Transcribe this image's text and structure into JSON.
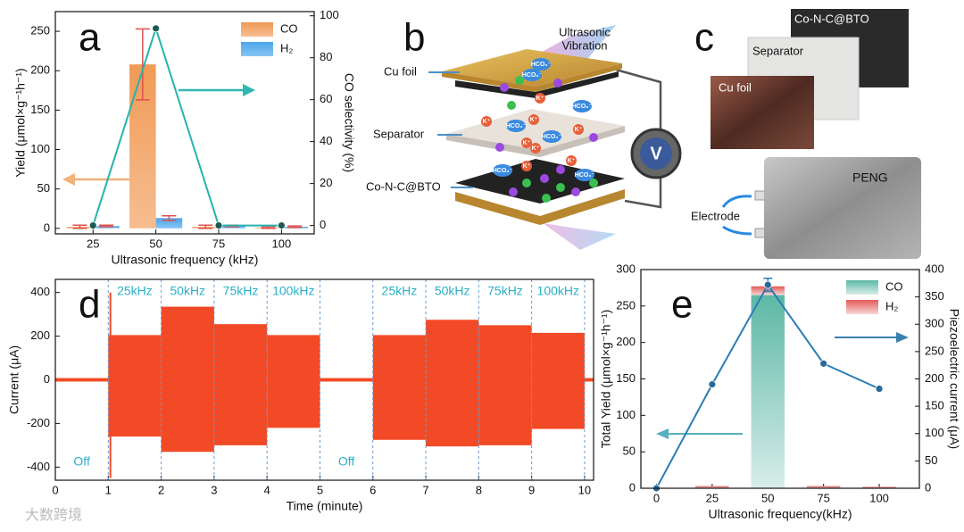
{
  "chart_data": [
    {
      "type": "bar",
      "panel": "a",
      "x_label": "Ultrasonic frequency (kHz)",
      "y_label": "Yield (μmol×g⁻¹h⁻¹)",
      "y2_label": "CO selectivity (%)",
      "x": [
        25,
        50,
        75,
        100
      ],
      "xlim": [
        10,
        113
      ],
      "xticks": [
        25,
        50,
        75,
        100
      ],
      "ylim": [
        -7,
        275
      ],
      "yticks": [
        0,
        50,
        100,
        150,
        200,
        250
      ],
      "y2lim": [
        -4,
        102
      ],
      "y2ticks": [
        0,
        20,
        40,
        60,
        80,
        100
      ],
      "legend": "upper right",
      "stacked": false,
      "series": [
        {
          "name": "CO",
          "color": "#f19a55",
          "values": [
            2,
            208,
            2,
            1
          ],
          "errors": [
            2,
            45,
            2,
            1
          ],
          "error_color": "#e05050"
        },
        {
          "name": "H₂",
          "color": "#4aa6ec",
          "values": [
            3,
            13,
            3,
            2
          ],
          "errors": [
            1,
            3,
            1,
            1
          ],
          "error_color": "#e05050"
        },
        {
          "type": "line",
          "axis": "y2",
          "color": "#26b3ad",
          "values": [
            0,
            94,
            0,
            0
          ]
        }
      ]
    },
    {
      "type": "envelope",
      "panel": "d",
      "x_label": "Time (minute)",
      "y_label": "Current (μA)",
      "xlim": [
        0,
        10.17
      ],
      "xticks": [
        0,
        1,
        2,
        3,
        4,
        5,
        6,
        7,
        8,
        9,
        10
      ],
      "ylim": [
        -460,
        460
      ],
      "yticks": [
        -400,
        -200,
        0,
        200,
        400
      ],
      "color": "#f24a26",
      "segments": [
        {
          "label": "Off",
          "start": 0,
          "end": 1,
          "max": 8,
          "min": -8
        },
        {
          "label": "25kHz",
          "start": 1,
          "end": 2,
          "max": 205,
          "min": -260
        },
        {
          "label": "50kHz",
          "start": 2,
          "end": 3,
          "max": 335,
          "min": -330
        },
        {
          "label": "75kHz",
          "start": 3,
          "end": 4,
          "max": 255,
          "min": -300
        },
        {
          "label": "100kHz",
          "start": 4,
          "end": 5,
          "max": 205,
          "min": -220
        },
        {
          "label": "Off",
          "start": 5,
          "end": 6,
          "max": 8,
          "min": -8
        },
        {
          "label": "25kHz",
          "start": 6,
          "end": 7,
          "max": 205,
          "min": -275
        },
        {
          "label": "50kHz",
          "start": 7,
          "end": 8,
          "max": 275,
          "min": -305
        },
        {
          "label": "75kHz",
          "start": 8,
          "end": 9,
          "max": 250,
          "min": -300
        },
        {
          "label": "100kHz",
          "start": 9,
          "end": 10,
          "max": 215,
          "min": -225
        },
        {
          "label": null,
          "start": 10,
          "end": 10.17,
          "max": 8,
          "min": -8
        }
      ],
      "spikes": [
        {
          "x": 1.04,
          "max": 400,
          "min": -450
        }
      ]
    },
    {
      "type": "bar",
      "panel": "e",
      "x_label": "Ultrasonic frequency(kHz)",
      "y_label": "Total Yield (μmol×g⁻¹h⁻¹)",
      "y2_label": "Piezoelectric current (μA)",
      "x": [
        0,
        25,
        50,
        75,
        100
      ],
      "xlim": [
        -7,
        118
      ],
      "xticks": [
        0,
        25,
        50,
        75,
        100
      ],
      "ylim": [
        0,
        300
      ],
      "yticks": [
        0,
        50,
        100,
        150,
        200,
        250,
        300
      ],
      "y2lim": [
        0,
        400
      ],
      "y2ticks": [
        0,
        50,
        100,
        150,
        200,
        250,
        300,
        350,
        400
      ],
      "legend": "upper right",
      "stacked": true,
      "series": [
        {
          "name": "CO",
          "color": "#5db8a6",
          "values": [
            null,
            0,
            265,
            0,
            0
          ]
        },
        {
          "name": "H₂",
          "color": "#e45a5a",
          "values": [
            null,
            3,
            12,
            3,
            2
          ]
        },
        {
          "type": "line",
          "axis": "y2",
          "color": "#2a7db4",
          "values": [
            0,
            190,
            372,
            228,
            182
          ],
          "errors": [
            null,
            null,
            12,
            null,
            null
          ],
          "error_color": "#2a7db4"
        }
      ]
    }
  ],
  "diagram_b": {
    "panel": "b",
    "vibration": [
      "Ultrasonic",
      "Vibration"
    ],
    "cu_foil": "Cu foil",
    "separator": "Separator",
    "electrode": "Co-N-C@BTO",
    "meter": "V",
    "ions": [
      "HCO₃⁻",
      "HCO₃⁻",
      "HCO₃⁻",
      "HCO₃⁻",
      "HCO₃⁻",
      "HCO₃⁻",
      "HCO₃⁻",
      "K⁺",
      "K⁺",
      "K⁺",
      "K⁺",
      "K⁺",
      "K⁺",
      "K⁺",
      "K⁺"
    ]
  },
  "photo_c": {
    "panel": "c",
    "cnc": "Co-N-C@BTO",
    "separator": "Separator",
    "cu_foil": "Cu foil",
    "peng": "PENG",
    "electrode": "Electrode"
  },
  "watermark": "大数跨境"
}
